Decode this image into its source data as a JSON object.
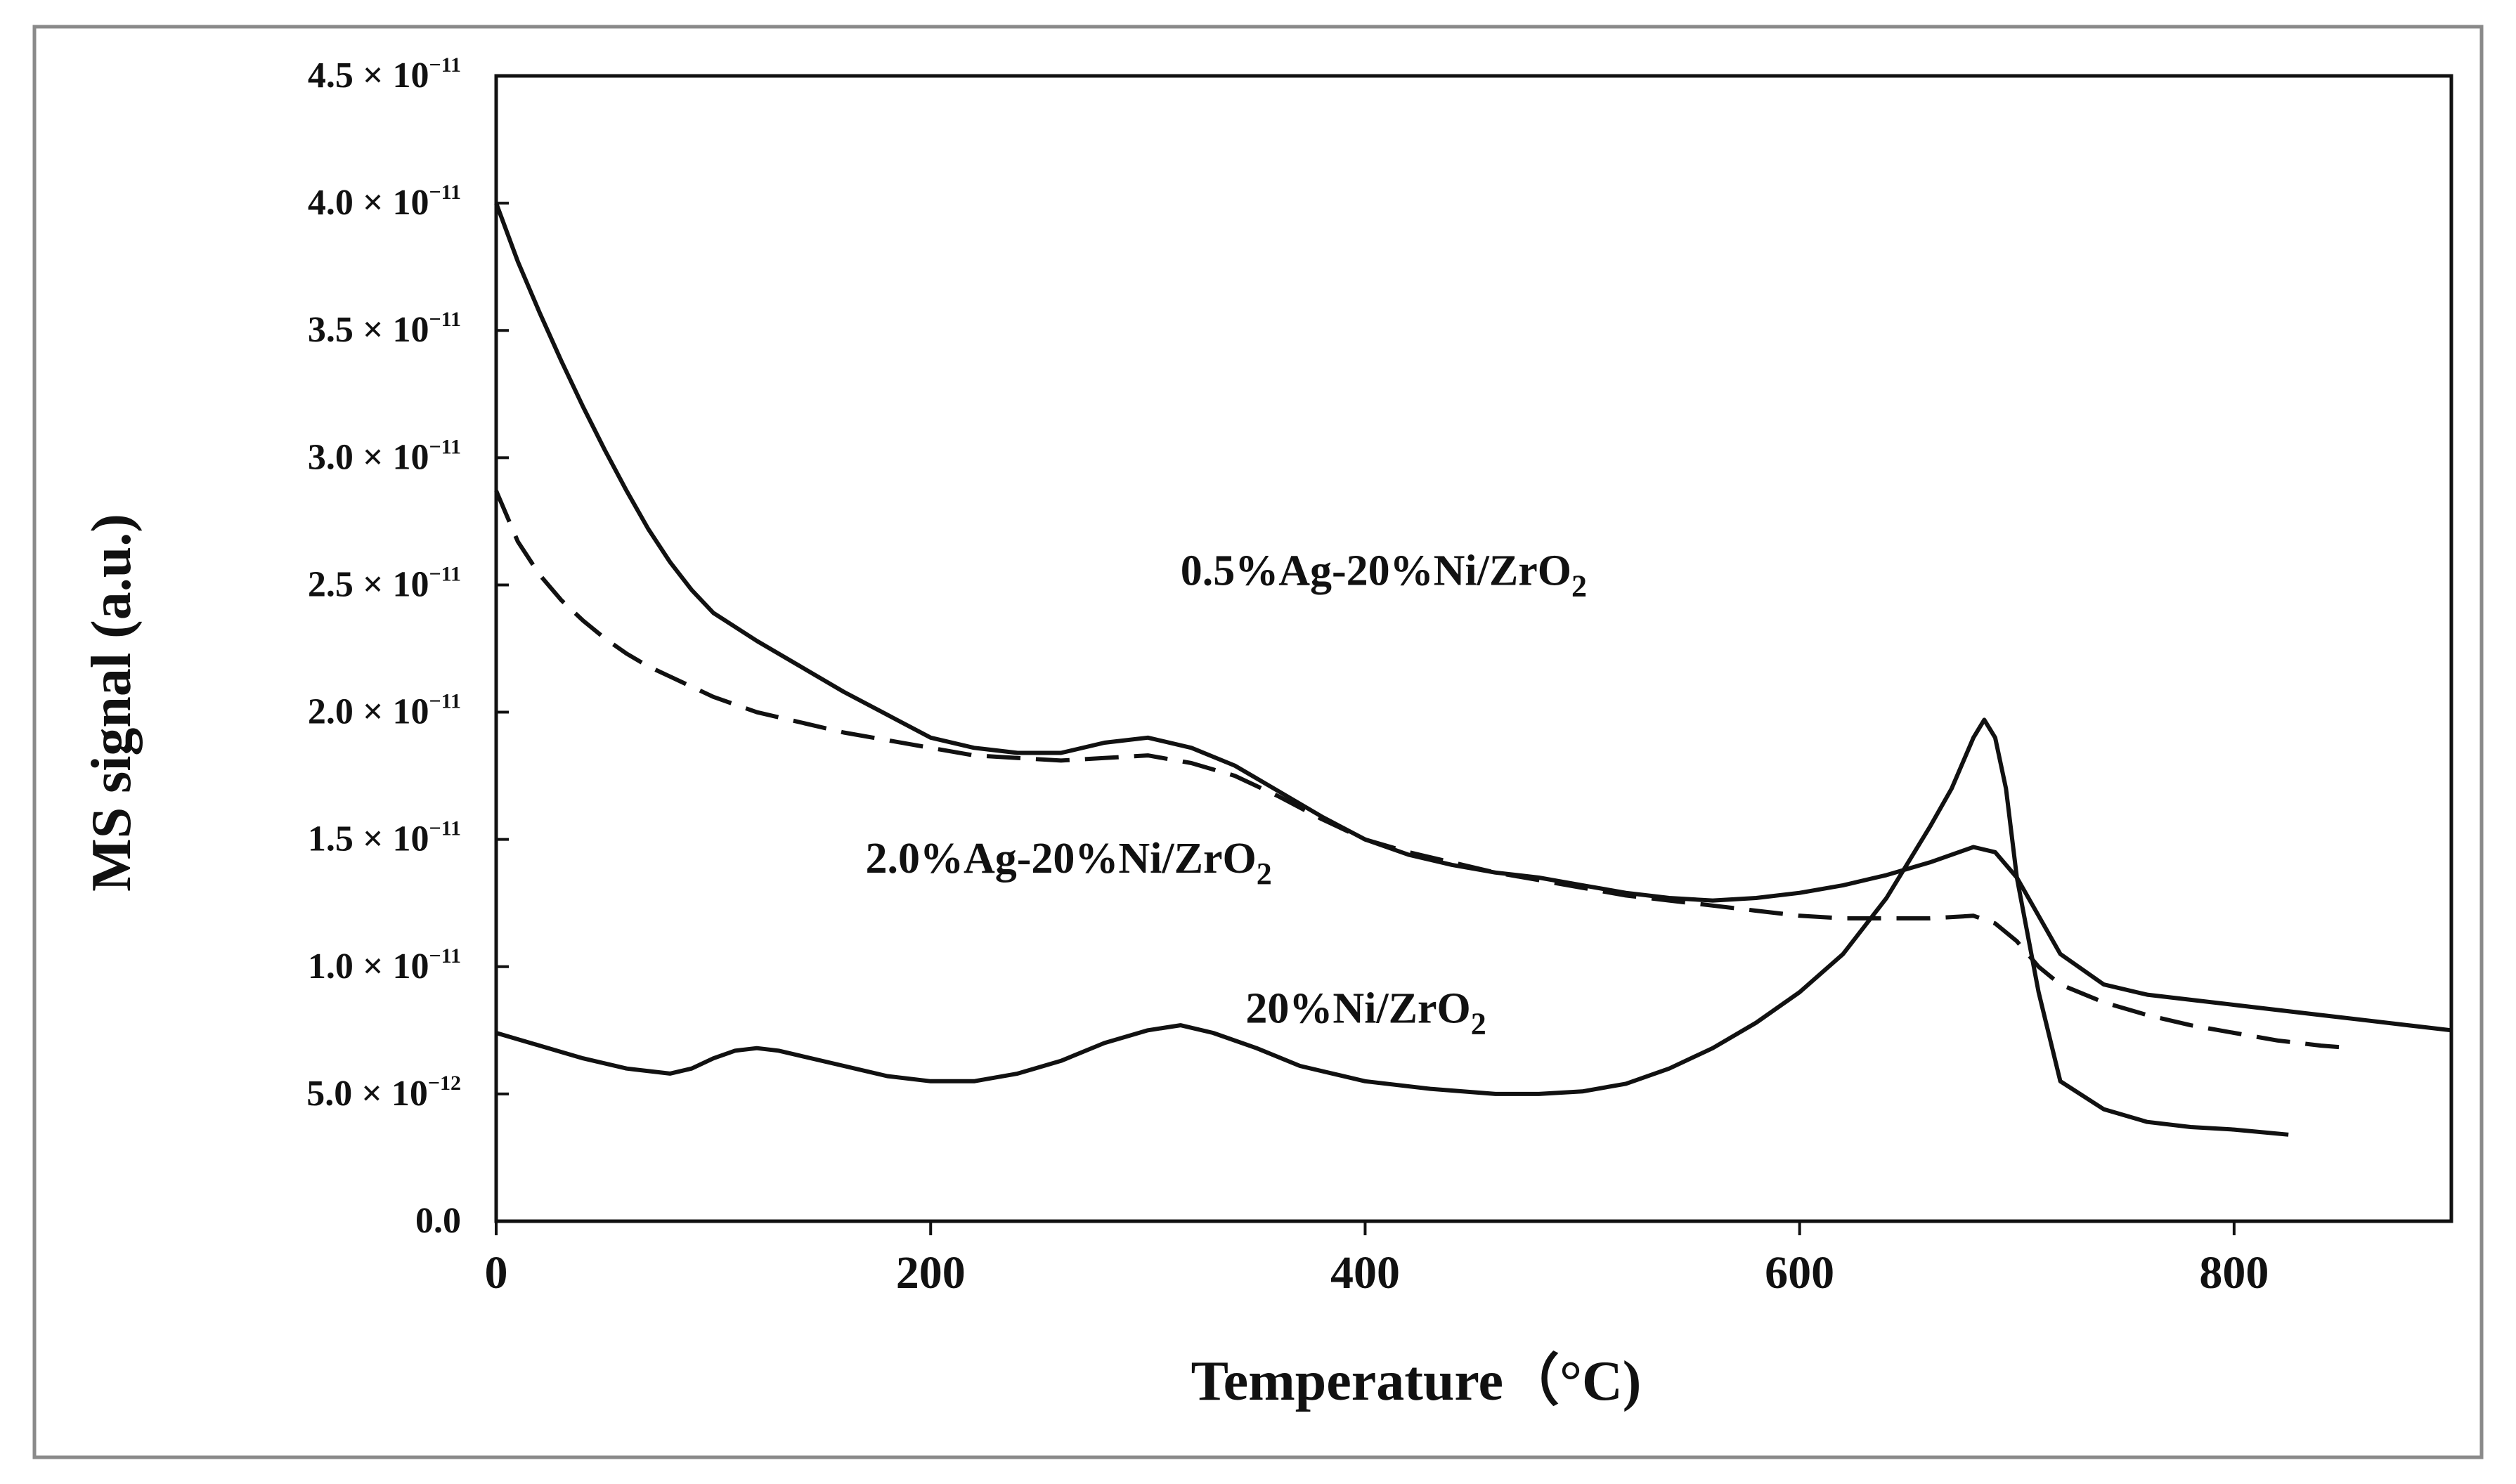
{
  "colors": {
    "line": "#111111",
    "frame": "#8a8a8a",
    "background": "#ffffff"
  },
  "chart_data": {
    "type": "line",
    "title": "",
    "xlabel": "Temperature（°C)",
    "ylabel": "MS signal (a.u.)",
    "xlim": [
      0,
      900
    ],
    "ylim": [
      0,
      4.5e-11
    ],
    "x_ticks": [
      {
        "value": 0,
        "label": "0"
      },
      {
        "value": 200,
        "label": "200"
      },
      {
        "value": 400,
        "label": "400"
      },
      {
        "value": 600,
        "label": "600"
      },
      {
        "value": 800,
        "label": "800"
      }
    ],
    "y_ticks": [
      {
        "value": 0,
        "label": "0.0"
      },
      {
        "value": 5e-12,
        "mantissa": "5.0 × 10",
        "exp": "−12"
      },
      {
        "value": 1e-11,
        "mantissa": "1.0 × 10",
        "exp": "−11"
      },
      {
        "value": 1.5e-11,
        "mantissa": "1.5 × 10",
        "exp": "−11"
      },
      {
        "value": 2e-11,
        "mantissa": "2.0 × 10",
        "exp": "−11"
      },
      {
        "value": 2.5e-11,
        "mantissa": "2.5 × 10",
        "exp": "−11"
      },
      {
        "value": 3e-11,
        "mantissa": "3.0 × 10",
        "exp": "−11"
      },
      {
        "value": 3.5e-11,
        "mantissa": "3.5 × 10",
        "exp": "−11"
      },
      {
        "value": 4e-11,
        "mantissa": "4.0 × 10",
        "exp": "−11"
      },
      {
        "value": 4.5e-11,
        "mantissa": "4.5 × 10",
        "exp": "−11"
      }
    ],
    "annotations": [
      {
        "base": "0.5%Ag-20%Ni/ZrO",
        "sub": "2",
        "x": 315,
        "y": 2.5e-11
      },
      {
        "base": "2.0%Ag-20%Ni/ZrO",
        "sub": "2",
        "x": 170,
        "y": 1.37e-11
      },
      {
        "base": "20%Ni/ZrO",
        "sub": "2",
        "x": 345,
        "y": 7.8e-12
      }
    ],
    "series": [
      {
        "name": "0.5%Ag-20%Ni/ZrO2",
        "style": "solid",
        "x": [
          0,
          10,
          20,
          30,
          40,
          50,
          60,
          70,
          80,
          90,
          100,
          120,
          140,
          160,
          180,
          200,
          220,
          240,
          260,
          280,
          300,
          320,
          340,
          360,
          380,
          400,
          420,
          440,
          460,
          480,
          500,
          520,
          540,
          560,
          580,
          600,
          620,
          640,
          660,
          680,
          690,
          700,
          710,
          720,
          740,
          760,
          780,
          800,
          820,
          840,
          860,
          880,
          900
        ],
        "y": [
          4e-11,
          3.77e-11,
          3.57e-11,
          3.38e-11,
          3.2e-11,
          3.03e-11,
          2.87e-11,
          2.72e-11,
          2.59e-11,
          2.48e-11,
          2.39e-11,
          2.28e-11,
          2.18e-11,
          2.08e-11,
          1.99e-11,
          1.9e-11,
          1.86e-11,
          1.84e-11,
          1.84e-11,
          1.88e-11,
          1.9e-11,
          1.86e-11,
          1.79e-11,
          1.69e-11,
          1.59e-11,
          1.5e-11,
          1.44e-11,
          1.4e-11,
          1.37e-11,
          1.35e-11,
          1.32e-11,
          1.29e-11,
          1.27e-11,
          1.26e-11,
          1.27e-11,
          1.29e-11,
          1.32e-11,
          1.36e-11,
          1.41e-11,
          1.47e-11,
          1.45e-11,
          1.35e-11,
          1.2e-11,
          1.05e-11,
          9.3e-12,
          8.9e-12,
          8.7e-12,
          8.5e-12,
          8.3e-12,
          8.1e-12,
          7.9e-12,
          7.7e-12,
          7.5e-12
        ]
      },
      {
        "name": "2.0%Ag-20%Ni/ZrO2",
        "style": "dashed",
        "x": [
          0,
          10,
          20,
          30,
          40,
          50,
          60,
          70,
          80,
          100,
          120,
          140,
          160,
          180,
          200,
          220,
          240,
          260,
          280,
          300,
          320,
          340,
          360,
          380,
          400,
          420,
          440,
          460,
          480,
          500,
          520,
          540,
          560,
          580,
          600,
          620,
          640,
          660,
          680,
          690,
          700,
          710,
          720,
          740,
          760,
          780,
          800,
          820,
          840,
          855
        ],
        "y": [
          2.87e-11,
          2.67e-11,
          2.54e-11,
          2.44e-11,
          2.36e-11,
          2.29e-11,
          2.23e-11,
          2.18e-11,
          2.14e-11,
          2.06e-11,
          2e-11,
          1.96e-11,
          1.92e-11,
          1.89e-11,
          1.86e-11,
          1.83e-11,
          1.82e-11,
          1.81e-11,
          1.82e-11,
          1.83e-11,
          1.8e-11,
          1.75e-11,
          1.67e-11,
          1.58e-11,
          1.5e-11,
          1.45e-11,
          1.41e-11,
          1.37e-11,
          1.34e-11,
          1.31e-11,
          1.28e-11,
          1.26e-11,
          1.24e-11,
          1.22e-11,
          1.2e-11,
          1.19e-11,
          1.19e-11,
          1.19e-11,
          1.2e-11,
          1.17e-11,
          1.1e-11,
          1e-11,
          9.3e-12,
          8.6e-12,
          8.1e-12,
          7.7e-12,
          7.4e-12,
          7.1e-12,
          6.9e-12,
          6.8e-12
        ]
      },
      {
        "name": "20%Ni/ZrO2",
        "style": "solid",
        "x": [
          0,
          20,
          40,
          60,
          80,
          90,
          100,
          110,
          120,
          130,
          140,
          160,
          180,
          200,
          220,
          240,
          260,
          280,
          300,
          315,
          330,
          350,
          370,
          400,
          430,
          460,
          480,
          500,
          520,
          540,
          560,
          580,
          600,
          620,
          640,
          660,
          670,
          680,
          685,
          690,
          695,
          700,
          710,
          720,
          740,
          760,
          780,
          800,
          825
        ],
        "y": [
          7.4e-12,
          6.9e-12,
          6.4e-12,
          6e-12,
          5.8e-12,
          6e-12,
          6.4e-12,
          6.7e-12,
          6.8e-12,
          6.7e-12,
          6.5e-12,
          6.1e-12,
          5.7e-12,
          5.5e-12,
          5.5e-12,
          5.8e-12,
          6.3e-12,
          7e-12,
          7.5e-12,
          7.7e-12,
          7.4e-12,
          6.8e-12,
          6.1e-12,
          5.5e-12,
          5.2e-12,
          5e-12,
          5e-12,
          5.1e-12,
          5.4e-12,
          6e-12,
          6.8e-12,
          7.8e-12,
          9e-12,
          1.05e-11,
          1.27e-11,
          1.55e-11,
          1.7e-11,
          1.9e-11,
          1.97e-11,
          1.9e-11,
          1.7e-11,
          1.35e-11,
          9e-12,
          5.5e-12,
          4.4e-12,
          3.9e-12,
          3.7e-12,
          3.6e-12,
          3.4e-12
        ]
      }
    ]
  }
}
